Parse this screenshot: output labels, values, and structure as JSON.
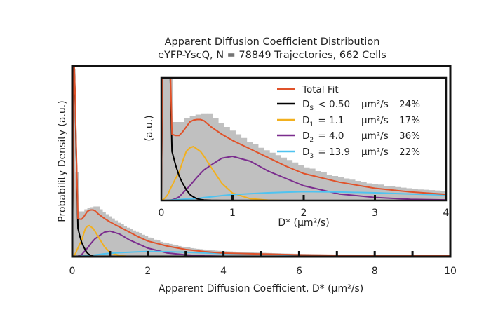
{
  "chart_data": {
    "type": "bar+line",
    "title": "Apparent Diffusion Coefficient Distribution",
    "subtitle": "eYFP-YscQ, N = 78849 Trajectories, 662 Cells",
    "xlabel": "Apparent Diffusion Coefficient, D* (µm²/s)",
    "ylabel": "Probability Density (a.u.)",
    "xlim": [
      0,
      10
    ],
    "ylim": [
      0,
      2.7
    ],
    "xticks": [
      "0",
      "2",
      "4",
      "6",
      "8",
      "10"
    ],
    "inset": {
      "xlabel": "D* (µm²/s)",
      "ylabel": "(a.u.)",
      "xlim": [
        0,
        4
      ],
      "ylim": [
        0,
        1
      ],
      "xticks": [
        "0",
        "1",
        "2",
        "3",
        "4"
      ]
    },
    "histogram": {
      "color": "#c0c0c0",
      "bin_width": 0.08,
      "values": [
        2.65,
        1.2,
        0.64,
        0.64,
        0.67,
        0.69,
        0.7,
        0.71,
        0.71,
        0.67,
        0.63,
        0.6,
        0.57,
        0.54,
        0.51,
        0.48,
        0.46,
        0.43,
        0.41,
        0.39,
        0.37,
        0.35,
        0.33,
        0.31,
        0.29,
        0.27,
        0.26,
        0.24,
        0.23,
        0.21,
        0.2,
        0.19,
        0.18,
        0.17,
        0.16,
        0.15,
        0.14,
        0.135,
        0.13,
        0.12,
        0.115,
        0.11,
        0.105,
        0.1,
        0.095,
        0.09,
        0.088,
        0.085,
        0.082,
        0.08,
        0.077,
        0.075,
        0.073,
        0.071,
        0.069,
        0.067,
        0.065,
        0.063,
        0.062,
        0.06,
        0.058,
        0.057,
        0.055,
        0.054,
        0.052,
        0.051,
        0.049,
        0.048,
        0.047,
        0.045,
        0.044,
        0.043,
        0.042,
        0.041,
        0.04,
        0.039,
        0.038,
        0.037,
        0.036,
        0.035,
        0.034,
        0.033,
        0.032,
        0.031,
        0.03,
        0.03,
        0.029,
        0.028,
        0.027,
        0.027,
        0.026,
        0.025,
        0.025,
        0.024,
        0.023,
        0.023,
        0.022,
        0.022,
        0.021,
        0.02,
        0.02,
        0.019,
        0.019,
        0.018,
        0.018,
        0.017,
        0.017,
        0.016,
        0.016,
        0.016,
        0.015,
        0.015,
        0.014,
        0.014,
        0.014,
        0.013,
        0.013,
        0.013,
        0.012,
        0.012,
        0.012,
        0.011,
        0.011,
        0.011,
        0.01
      ]
    },
    "x": [
      0,
      0.03,
      0.05,
      0.08,
      0.1,
      0.13,
      0.15,
      0.2,
      0.25,
      0.3,
      0.35,
      0.4,
      0.45,
      0.5,
      0.55,
      0.6,
      0.7,
      0.85,
      1,
      1.25,
      1.5,
      1.75,
      2,
      2.5,
      3,
      3.5,
      4,
      5,
      6,
      8,
      10
    ],
    "series": [
      {
        "key": "purple",
        "color": "#7b2d8e",
        "values": [
          0,
          0,
          0,
          0,
          0,
          0.003,
          0.005,
          0.015,
          0.03,
          0.06,
          0.09,
          0.12,
          0.155,
          0.19,
          0.22,
          0.25,
          0.29,
          0.345,
          0.36,
          0.32,
          0.24,
          0.18,
          0.12,
          0.053,
          0.025,
          0.01,
          0.005,
          0.001,
          0,
          0,
          0
        ]
      },
      {
        "key": "yellow",
        "color": "#f2b01e",
        "values": [
          0,
          0.01,
          0.02,
          0.04,
          0.06,
          0.1,
          0.12,
          0.18,
          0.23,
          0.32,
          0.4,
          0.43,
          0.44,
          0.42,
          0.4,
          0.36,
          0.27,
          0.14,
          0.06,
          0.015,
          0.003,
          0,
          0,
          0,
          0,
          0,
          0,
          0,
          0,
          0,
          0
        ]
      },
      {
        "key": "cyan",
        "color": "#4fc3f0",
        "values": [
          0,
          0,
          0,
          0.001,
          0.002,
          0.003,
          0.004,
          0.006,
          0.008,
          0.01,
          0.012,
          0.014,
          0.015,
          0.017,
          0.02,
          0.024,
          0.03,
          0.04,
          0.048,
          0.056,
          0.063,
          0.068,
          0.072,
          0.069,
          0.063,
          0.053,
          0.044,
          0.035,
          0.023,
          0.015,
          0.01
        ]
      },
      {
        "key": "black",
        "color": "#000000",
        "values": [
          0,
          2.0,
          2.7,
          2.2,
          1.6,
          0.9,
          0.4,
          0.29,
          0.2,
          0.14,
          0.09,
          0.05,
          0.03,
          0.015,
          0.008,
          0.004,
          0.001,
          0,
          0,
          0,
          0,
          0,
          0,
          0,
          0,
          0,
          0,
          0,
          0,
          0,
          0
        ]
      },
      {
        "key": "orange",
        "color": "#e0522a",
        "values": [
          0,
          2.01,
          2.72,
          2.24,
          1.67,
          1.0,
          0.54,
          0.53,
          0.53,
          0.56,
          0.6,
          0.64,
          0.655,
          0.66,
          0.66,
          0.65,
          0.6,
          0.54,
          0.49,
          0.42,
          0.35,
          0.28,
          0.22,
          0.15,
          0.1,
          0.07,
          0.05,
          0.038,
          0.025,
          0.015,
          0.01
        ]
      }
    ],
    "legend": {
      "placement": "top-right of inset",
      "entries": [
        {
          "color": "#e0522a",
          "label": "Total Fit",
          "sym": "",
          "sub": "",
          "rel": "",
          "unit": "",
          "pct": ""
        },
        {
          "color": "#000000",
          "label": "",
          "sym": "D",
          "sub": "S",
          "rel": "< 0.50",
          "unit": "µm²/s",
          "pct": "24%"
        },
        {
          "color": "#f2b01e",
          "label": "",
          "sym": "D",
          "sub": "1",
          "rel": "=   1.1",
          "unit": "µm²/s",
          "pct": "17%"
        },
        {
          "color": "#7b2d8e",
          "label": "",
          "sym": "D",
          "sub": "2",
          "rel": "=   4.0",
          "unit": "µm²/s",
          "pct": "36%"
        },
        {
          "color": "#4fc3f0",
          "label": "",
          "sym": "D",
          "sub": "3",
          "rel": "= 13.9",
          "unit": "µm²/s",
          "pct": "22%"
        }
      ]
    }
  }
}
